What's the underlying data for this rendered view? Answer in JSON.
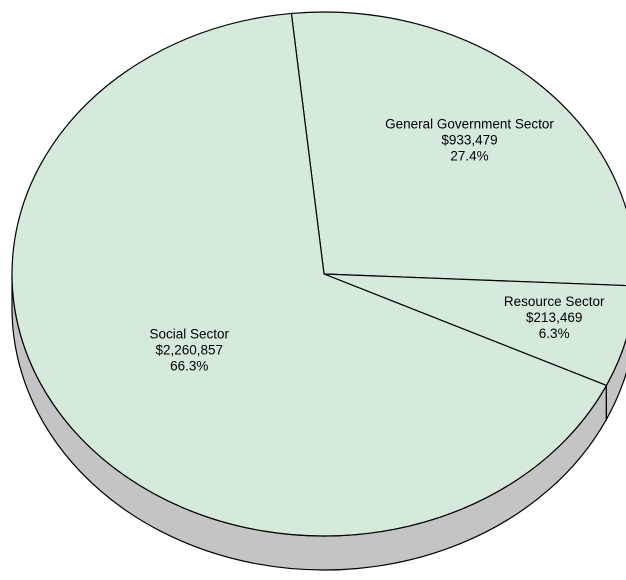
{
  "chart_data": {
    "type": "pie",
    "title": "",
    "style": "3d",
    "slices": [
      {
        "label": "General Government Sector",
        "value": 933479,
        "value_label": "$933,479",
        "percent": 27.4,
        "percent_label": "27.4%"
      },
      {
        "label": "Resource Sector",
        "value": 213469,
        "value_label": "$213,469",
        "percent": 6.3,
        "percent_label": "6.3%"
      },
      {
        "label": "Social Sector",
        "value": 2260857,
        "value_label": "$2,260,857",
        "percent": 66.3,
        "percent_label": "66.3%"
      }
    ],
    "colors": {
      "slice_fill": "#d6eadb",
      "side_fill": "#c4c4c4",
      "outline": "#000000"
    },
    "legend": "none"
  }
}
